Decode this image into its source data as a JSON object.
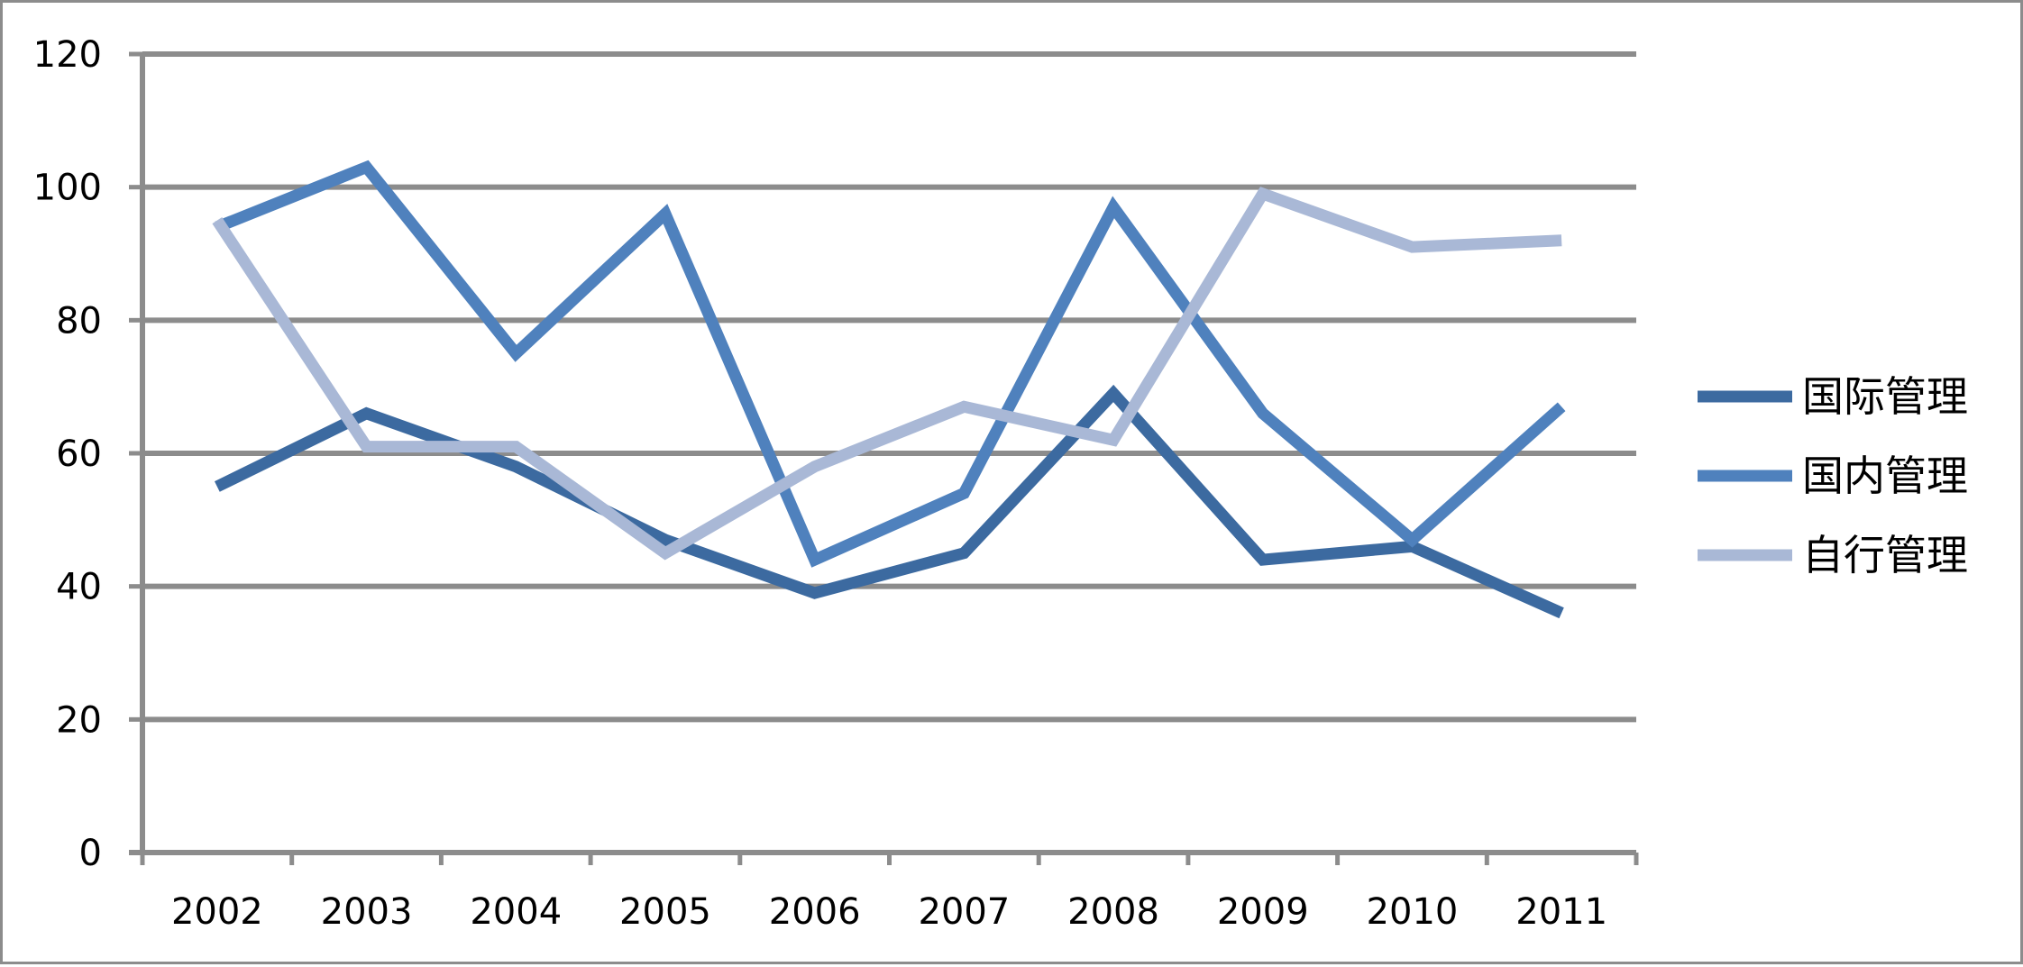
{
  "chart_data": {
    "type": "line",
    "title": "",
    "xlabel": "",
    "ylabel": "",
    "categories": [
      "2002",
      "2003",
      "2004",
      "2005",
      "2006",
      "2007",
      "2008",
      "2009",
      "2010",
      "2011"
    ],
    "ylim": [
      0,
      120
    ],
    "yticks": [
      0,
      20,
      40,
      60,
      80,
      100,
      120
    ],
    "grid": true,
    "legend_position": "right",
    "series": [
      {
        "name": "国际管理",
        "color": "#3c6aa0",
        "values": [
          55,
          66,
          58,
          47,
          39,
          45,
          69,
          44,
          46,
          36
        ]
      },
      {
        "name": "国内管理",
        "color": "#4f81bd",
        "values": [
          94,
          103,
          75,
          96,
          44,
          54,
          97,
          66,
          47,
          67
        ]
      },
      {
        "name": "自行管理",
        "color": "#a9b8d6",
        "values": [
          95,
          61,
          61,
          45,
          58,
          67,
          62,
          99,
          91,
          92
        ]
      }
    ]
  }
}
